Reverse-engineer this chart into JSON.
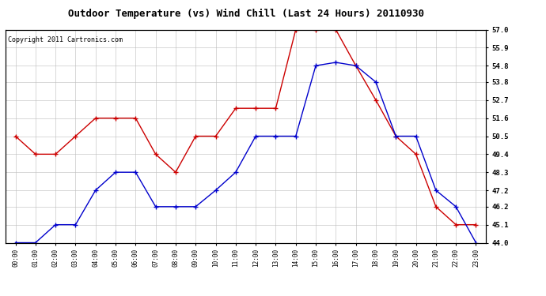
{
  "title": "Outdoor Temperature (vs) Wind Chill (Last 24 Hours) 20110930",
  "copyright": "Copyright 2011 Cartronics.com",
  "x_labels": [
    "00:00",
    "01:00",
    "02:00",
    "03:00",
    "04:00",
    "05:00",
    "06:00",
    "07:00",
    "08:00",
    "09:00",
    "10:00",
    "11:00",
    "12:00",
    "13:00",
    "14:00",
    "15:00",
    "16:00",
    "17:00",
    "18:00",
    "19:00",
    "20:00",
    "21:00",
    "22:00",
    "23:00"
  ],
  "red_data": [
    50.5,
    49.4,
    49.4,
    50.5,
    51.6,
    51.6,
    51.6,
    49.4,
    48.3,
    50.5,
    50.5,
    52.2,
    52.2,
    52.2,
    57.0,
    57.0,
    57.0,
    54.8,
    52.7,
    50.5,
    49.4,
    46.2,
    45.1,
    45.1
  ],
  "blue_data": [
    44.0,
    44.0,
    45.1,
    45.1,
    47.2,
    48.3,
    48.3,
    46.2,
    46.2,
    46.2,
    47.2,
    48.3,
    50.5,
    50.5,
    50.5,
    54.8,
    55.0,
    54.8,
    53.8,
    50.5,
    50.5,
    47.2,
    46.2,
    44.0
  ],
  "ylim_min": 44.0,
  "ylim_max": 57.0,
  "yticks": [
    44.0,
    45.1,
    46.2,
    47.2,
    48.3,
    49.4,
    50.5,
    51.6,
    52.7,
    53.8,
    54.8,
    55.9,
    57.0
  ],
  "red_color": "#cc0000",
  "blue_color": "#0000cc",
  "bg_color": "#ffffff",
  "grid_color": "#bbbbbb",
  "title_fontsize": 9,
  "copyright_fontsize": 6
}
